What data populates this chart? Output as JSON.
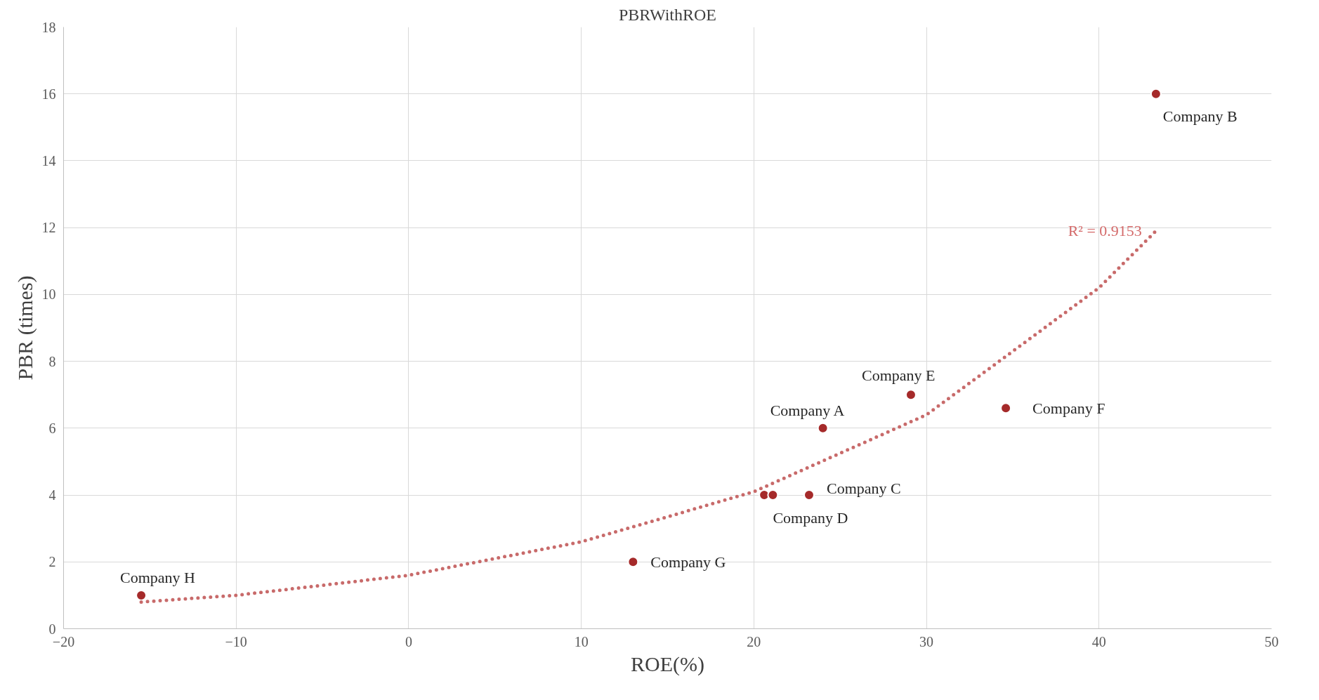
{
  "chart_data": {
    "type": "scatter",
    "title": "PBRWithROE",
    "xlabel": "ROE(%)",
    "ylabel": "PBR (times)",
    "xlim": [
      -20,
      50
    ],
    "xticks": [
      -20,
      -10,
      0,
      10,
      20,
      30,
      40,
      50
    ],
    "ylim": [
      0,
      18
    ],
    "yticks": [
      0,
      2,
      4,
      6,
      8,
      10,
      12,
      14,
      16,
      18
    ],
    "grid": true,
    "marker": "circle",
    "series": [
      {
        "color": "#a52a2a",
        "x": [
          -15.5,
          13.0,
          20.6,
          21.1,
          23.2,
          24.0,
          29.1,
          34.6,
          43.3
        ],
        "values": [
          1,
          2,
          4,
          4,
          4,
          6,
          7,
          6.6,
          16
        ]
      },
      {
        "type": "line",
        "color": "#c86a6a",
        "line_style": "dotted",
        "marker": "none",
        "x": [
          -15.5,
          -10,
          0,
          10,
          20,
          30,
          40,
          43.3
        ],
        "values": [
          0.8,
          1.0,
          1.6,
          2.6,
          4.1,
          6.4,
          10.2,
          11.9
        ]
      }
    ],
    "annotations": [
      {
        "text": "Company H",
        "x": -15.5,
        "y": 1
      },
      {
        "text": "Company G",
        "x": 13.0,
        "y": 2
      },
      {
        "text": "Company D",
        "x": 21.1,
        "y": 4
      },
      {
        "text": "Company C",
        "x": 23.2,
        "y": 4
      },
      {
        "text": "Company A",
        "x": 24.0,
        "y": 6
      },
      {
        "text": "Company E",
        "x": 29.1,
        "y": 7
      },
      {
        "text": "Company F",
        "x": 34.6,
        "y": 6.6
      },
      {
        "text": "Company B",
        "x": 43.3,
        "y": 16
      },
      {
        "text": "R² = 0.9153",
        "x": 43.3,
        "y": 11.9
      }
    ]
  }
}
